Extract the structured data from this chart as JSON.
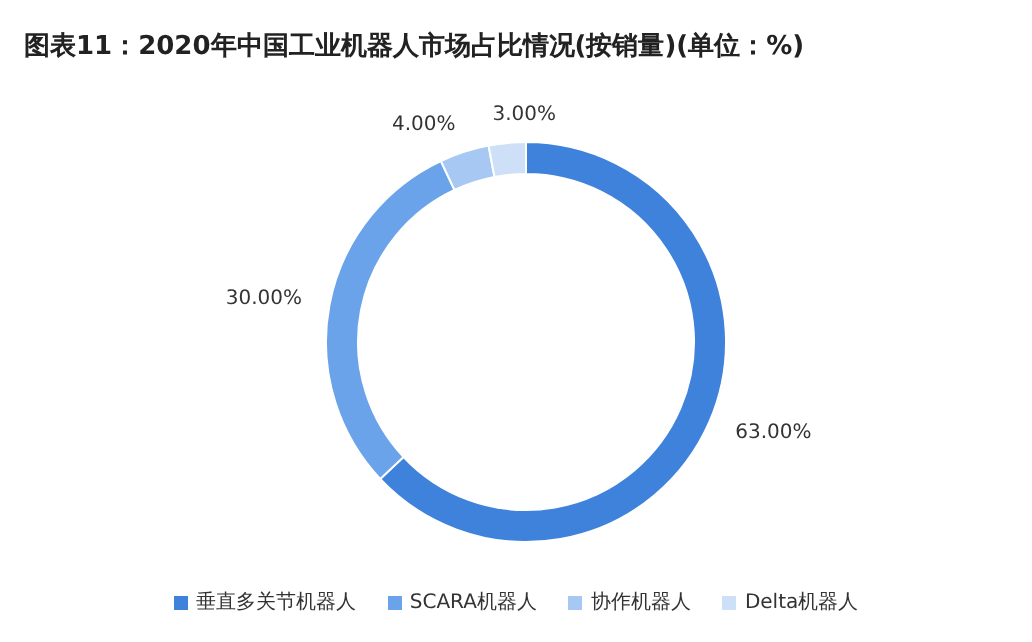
{
  "chart_data": {
    "type": "donut",
    "title": "图表11：2020年中国工业机器人市场占比情况(按销量)(单位：%)",
    "categories": [
      "垂直多关节机器人",
      "SCARA机器人",
      "协作机器人",
      "Delta机器人"
    ],
    "values": [
      63,
      30,
      4,
      3
    ],
    "value_labels": [
      "63.00%",
      "30.00%",
      "4.00%",
      "3.00%"
    ],
    "colors": [
      "#3f82dc",
      "#6aa3ea",
      "#a6c8f2",
      "#cde0f7"
    ],
    "legend": "bottom"
  }
}
